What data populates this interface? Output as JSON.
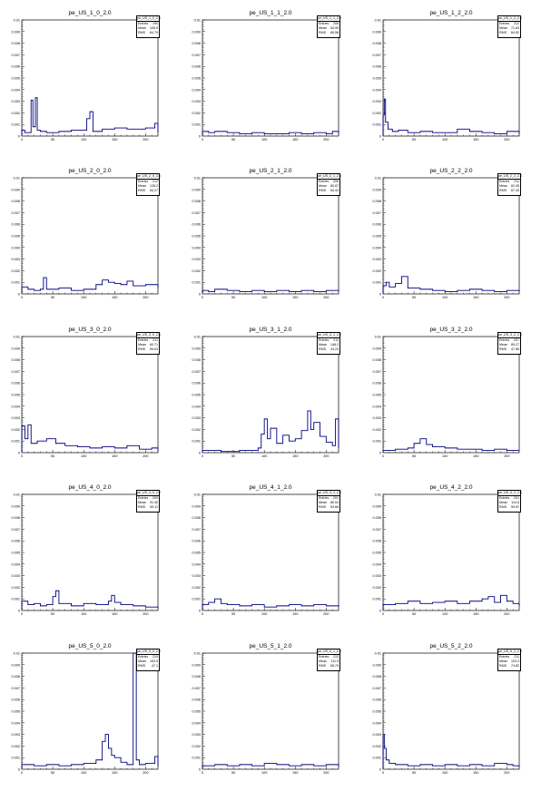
{
  "stat_labels": {
    "entries": "Entries",
    "mean": "Mean",
    "rms": "RMS"
  },
  "colors": {
    "line": "#000080",
    "axis": "#000000",
    "background": "#ffffff"
  },
  "chart_data": [
    {
      "type": "line",
      "title": "pe_US_1_0_2.0",
      "stats": {
        "name": "pe_US_1_0_2.0",
        "entries": "190",
        "mean": "108.9",
        "rms": "64.79"
      },
      "xlim": [
        0,
        220
      ],
      "ylim": [
        0,
        0.01
      ],
      "x_ticks": [
        0,
        50,
        100,
        150,
        200
      ],
      "y_ticks": [
        "0.001",
        "0.002",
        "0.003",
        "0.004",
        "0.005",
        "0.006",
        "0.007",
        "0.008",
        "0.009",
        "0.01"
      ],
      "series": [
        {
          "x": [
            0,
            5,
            12,
            15,
            18,
            22,
            25,
            30,
            40,
            60,
            80,
            100,
            105,
            110,
            115,
            130,
            150,
            170,
            200,
            215,
            220
          ],
          "y": [
            0.0005,
            0.0003,
            0.0003,
            0.0031,
            0.0008,
            0.0033,
            0.0005,
            0.0004,
            0.0003,
            0.0004,
            0.0005,
            0.0005,
            0.0015,
            0.0021,
            0.0004,
            0.0006,
            0.0007,
            0.0006,
            0.0007,
            0.0011,
            0.0003
          ]
        }
      ]
    },
    {
      "type": "line",
      "title": "pe_US_1_1_2.0",
      "stats": {
        "name": "pe_US_1_1_2.0",
        "entries": "208",
        "mean": "54.99",
        "rms": "65.58"
      },
      "xlim": [
        0,
        220
      ],
      "ylim": [
        0,
        0.01
      ],
      "x_ticks": [
        0,
        50,
        100,
        150,
        200
      ],
      "y_ticks": [
        "0.001",
        "0.002",
        "0.003",
        "0.004",
        "0.005",
        "0.006",
        "0.007",
        "0.008",
        "0.009",
        "0.01"
      ],
      "series": [
        {
          "x": [
            0,
            10,
            20,
            40,
            60,
            80,
            100,
            120,
            140,
            160,
            180,
            200,
            210,
            220
          ],
          "y": [
            0.0004,
            0.0003,
            0.0004,
            0.0003,
            0.0002,
            0.0003,
            0.0002,
            0.0002,
            0.0003,
            0.0002,
            0.0003,
            0.0002,
            0.0004,
            0.0002
          ]
        }
      ]
    },
    {
      "type": "line",
      "title": "pe_US_1_2_2.0",
      "stats": {
        "name": "pe_US_1_2_2.0",
        "entries": "212",
        "mean": "71.63",
        "rms": "64.52"
      },
      "xlim": [
        0,
        220
      ],
      "ylim": [
        0,
        0.01
      ],
      "x_ticks": [
        0,
        50,
        100,
        150,
        200
      ],
      "y_ticks": [
        "0.001",
        "0.002",
        "0.003",
        "0.004",
        "0.005",
        "0.006",
        "0.007",
        "0.008",
        "0.009",
        "0.01"
      ],
      "series": [
        {
          "x": [
            0,
            2,
            4,
            8,
            15,
            25,
            40,
            60,
            80,
            100,
            120,
            140,
            160,
            180,
            200,
            220
          ],
          "y": [
            0.0018,
            0.0032,
            0.0012,
            0.0006,
            0.0004,
            0.0005,
            0.0003,
            0.0004,
            0.0003,
            0.0003,
            0.0006,
            0.0004,
            0.0003,
            0.0002,
            0.0004,
            0.0002
          ]
        }
      ]
    },
    {
      "type": "line",
      "title": "pe_US_2_0_2.0",
      "stats": {
        "name": "pe_US_2_0_2.0",
        "entries": "212",
        "mean": "128.2",
        "rms": "64.27"
      },
      "xlim": [
        0,
        220
      ],
      "ylim": [
        0,
        0.01
      ],
      "x_ticks": [
        0,
        50,
        100,
        150,
        200
      ],
      "y_ticks": [
        "0.001",
        "0.002",
        "0.003",
        "0.004",
        "0.005",
        "0.006",
        "0.007",
        "0.008",
        "0.009",
        "0.01"
      ],
      "series": [
        {
          "x": [
            0,
            10,
            20,
            30,
            35,
            40,
            60,
            80,
            100,
            120,
            130,
            140,
            150,
            160,
            170,
            180,
            200,
            220
          ],
          "y": [
            0.0006,
            0.0004,
            0.0003,
            0.0004,
            0.0014,
            0.0004,
            0.0005,
            0.0003,
            0.0004,
            0.0008,
            0.0012,
            0.001,
            0.0009,
            0.0008,
            0.0011,
            0.0007,
            0.0008,
            0.0005
          ]
        }
      ]
    },
    {
      "type": "line",
      "title": "pe_US_2_1_2.0",
      "stats": {
        "name": "pe_US_2_1_2.0",
        "entries": "206",
        "mean": "80.67",
        "rms": "64.43"
      },
      "xlim": [
        0,
        220
      ],
      "ylim": [
        0,
        0.01
      ],
      "x_ticks": [
        0,
        50,
        100,
        150,
        200
      ],
      "y_ticks": [
        "0.001",
        "0.002",
        "0.003",
        "0.004",
        "0.005",
        "0.006",
        "0.007",
        "0.008",
        "0.009",
        "0.01"
      ],
      "series": [
        {
          "x": [
            0,
            10,
            20,
            40,
            60,
            80,
            100,
            120,
            140,
            160,
            180,
            200,
            220
          ],
          "y": [
            0.0003,
            0.0002,
            0.0004,
            0.0003,
            0.0002,
            0.0003,
            0.0002,
            0.0003,
            0.0002,
            0.0003,
            0.0002,
            0.0003,
            0.0002
          ]
        }
      ]
    },
    {
      "type": "line",
      "title": "pe_US_2_2_2.0",
      "stats": {
        "name": "pe_US_2_2_2.0",
        "entries": "211",
        "mean": "62.45",
        "rms": "67.26"
      },
      "xlim": [
        0,
        220
      ],
      "ylim": [
        0,
        0.01
      ],
      "x_ticks": [
        0,
        50,
        100,
        150,
        200
      ],
      "y_ticks": [
        "0.001",
        "0.002",
        "0.003",
        "0.004",
        "0.005",
        "0.006",
        "0.007",
        "0.008",
        "0.009",
        "0.01"
      ],
      "series": [
        {
          "x": [
            0,
            5,
            10,
            20,
            30,
            40,
            60,
            80,
            100,
            120,
            140,
            160,
            180,
            200,
            220
          ],
          "y": [
            0.0007,
            0.001,
            0.0006,
            0.0009,
            0.0015,
            0.0005,
            0.0004,
            0.0003,
            0.0002,
            0.0003,
            0.0004,
            0.0003,
            0.0002,
            0.0003,
            0.0002
          ]
        }
      ]
    },
    {
      "type": "line",
      "title": "pe_US_3_0_2.0",
      "stats": {
        "name": "pe_US_3_0_2.0",
        "entries": "211",
        "mean": "60.71",
        "rms": "59.63"
      },
      "xlim": [
        0,
        220
      ],
      "ylim": [
        0,
        0.01
      ],
      "x_ticks": [
        0,
        50,
        100,
        150,
        200
      ],
      "y_ticks": [
        "0.001",
        "0.002",
        "0.003",
        "0.004",
        "0.005",
        "0.006",
        "0.007",
        "0.008",
        "0.009",
        "0.01"
      ],
      "series": [
        {
          "x": [
            0,
            5,
            10,
            15,
            25,
            40,
            55,
            70,
            90,
            110,
            130,
            150,
            170,
            190,
            210,
            220
          ],
          "y": [
            0.0023,
            0.0012,
            0.0024,
            0.0008,
            0.001,
            0.0012,
            0.0008,
            0.0006,
            0.0005,
            0.0004,
            0.0005,
            0.0004,
            0.0006,
            0.0003,
            0.0004,
            0.0002
          ]
        }
      ]
    },
    {
      "type": "line",
      "title": "pe_US_3_1_2.0",
      "stats": {
        "name": "pe_US_3_1_2.0",
        "entries": "211",
        "mean": "148.2",
        "rms": "43.23"
      },
      "xlim": [
        0,
        220
      ],
      "ylim": [
        0,
        0.01
      ],
      "x_ticks": [
        0,
        50,
        100,
        150,
        200
      ],
      "y_ticks": [
        "0.001",
        "0.002",
        "0.003",
        "0.004",
        "0.005",
        "0.006",
        "0.007",
        "0.008",
        "0.009",
        "0.01"
      ],
      "series": [
        {
          "x": [
            0,
            30,
            60,
            90,
            95,
            100,
            105,
            110,
            120,
            130,
            140,
            150,
            160,
            170,
            175,
            180,
            190,
            200,
            210,
            215,
            220
          ],
          "y": [
            0.0002,
            0.0001,
            0.0002,
            0.0004,
            0.0016,
            0.0029,
            0.0012,
            0.0021,
            0.0008,
            0.0015,
            0.001,
            0.0012,
            0.0019,
            0.0036,
            0.002,
            0.0026,
            0.0014,
            0.0009,
            0.0006,
            0.0029,
            0.0004
          ]
        }
      ]
    },
    {
      "type": "line",
      "title": "pe_US_3_2_2.0",
      "stats": {
        "name": "pe_US_3_2_2.0",
        "entries": "207",
        "mean": "89.27",
        "rms": "47.58"
      },
      "xlim": [
        0,
        220
      ],
      "ylim": [
        0,
        0.01
      ],
      "x_ticks": [
        0,
        50,
        100,
        150,
        200
      ],
      "y_ticks": [
        "0.001",
        "0.002",
        "0.003",
        "0.004",
        "0.005",
        "0.006",
        "0.007",
        "0.008",
        "0.009",
        "0.01"
      ],
      "series": [
        {
          "x": [
            0,
            20,
            40,
            50,
            60,
            70,
            80,
            100,
            120,
            140,
            160,
            180,
            200,
            220
          ],
          "y": [
            0.0002,
            0.0003,
            0.0004,
            0.0008,
            0.0012,
            0.0007,
            0.0005,
            0.0004,
            0.0003,
            0.0003,
            0.0002,
            0.0003,
            0.0002,
            0.0002
          ]
        }
      ]
    },
    {
      "type": "line",
      "title": "pe_US_4_0_2.0",
      "stats": {
        "name": "pe_US_4_0_2.0",
        "entries": "209",
        "mean": "91.40",
        "rms": "59.11"
      },
      "xlim": [
        0,
        220
      ],
      "ylim": [
        0,
        0.01
      ],
      "x_ticks": [
        0,
        50,
        100,
        150,
        200
      ],
      "y_ticks": [
        "0.001",
        "0.002",
        "0.003",
        "0.004",
        "0.005",
        "0.006",
        "0.007",
        "0.008",
        "0.009",
        "0.01"
      ],
      "series": [
        {
          "x": [
            0,
            10,
            20,
            30,
            40,
            50,
            55,
            60,
            80,
            100,
            120,
            140,
            145,
            150,
            160,
            180,
            200,
            220
          ],
          "y": [
            0.0008,
            0.0005,
            0.0006,
            0.0004,
            0.0005,
            0.0012,
            0.0017,
            0.0006,
            0.0004,
            0.0006,
            0.0005,
            0.0008,
            0.0013,
            0.0007,
            0.0005,
            0.0004,
            0.0003,
            0.0002
          ]
        }
      ]
    },
    {
      "type": "line",
      "title": "pe_US_4_1_2.0",
      "stats": {
        "name": "pe_US_4_1_2.0",
        "entries": "201",
        "mean": "80.04",
        "rms": "63.66"
      },
      "xlim": [
        0,
        220
      ],
      "ylim": [
        0,
        0.01
      ],
      "x_ticks": [
        0,
        50,
        100,
        150,
        200
      ],
      "y_ticks": [
        "0.001",
        "0.002",
        "0.003",
        "0.004",
        "0.005",
        "0.006",
        "0.007",
        "0.008",
        "0.009",
        "0.01"
      ],
      "series": [
        {
          "x": [
            0,
            10,
            20,
            30,
            40,
            60,
            80,
            100,
            120,
            140,
            160,
            180,
            200,
            220
          ],
          "y": [
            0.0005,
            0.0007,
            0.001,
            0.0006,
            0.0005,
            0.0004,
            0.0005,
            0.0003,
            0.0004,
            0.0005,
            0.0004,
            0.0005,
            0.0004,
            0.0003
          ]
        }
      ]
    },
    {
      "type": "line",
      "title": "pe_US_4_2_2.0",
      "stats": {
        "name": "pe_US_4_2_2.0",
        "entries": "201",
        "mean": "114.5",
        "rms": "59.57"
      },
      "xlim": [
        0,
        220
      ],
      "ylim": [
        0,
        0.01
      ],
      "x_ticks": [
        0,
        50,
        100,
        150,
        200
      ],
      "y_ticks": [
        "0.001",
        "0.002",
        "0.003",
        "0.004",
        "0.005",
        "0.006",
        "0.007",
        "0.008",
        "0.009",
        "0.01"
      ],
      "series": [
        {
          "x": [
            0,
            20,
            40,
            60,
            80,
            100,
            120,
            140,
            160,
            170,
            180,
            190,
            200,
            210,
            220
          ],
          "y": [
            0.0005,
            0.0006,
            0.0008,
            0.0006,
            0.0007,
            0.0008,
            0.0006,
            0.0008,
            0.001,
            0.0012,
            0.0007,
            0.0013,
            0.0008,
            0.0006,
            0.0004
          ]
        }
      ]
    },
    {
      "type": "line",
      "title": "pe_US_5_0_2.0",
      "stats": {
        "name": "pe_US_5_0_2.0",
        "entries": "210",
        "mean": "153.5",
        "rms": "47.1"
      },
      "xlim": [
        0,
        220
      ],
      "ylim": [
        0,
        0.01
      ],
      "x_ticks": [
        0,
        50,
        100,
        150,
        200
      ],
      "y_ticks": [
        "0.001",
        "0.002",
        "0.003",
        "0.004",
        "0.005",
        "0.006",
        "0.007",
        "0.008",
        "0.009",
        "0.01"
      ],
      "series": [
        {
          "x": [
            0,
            20,
            40,
            60,
            80,
            100,
            120,
            130,
            135,
            140,
            145,
            150,
            160,
            170,
            180,
            185,
            190,
            200,
            215,
            220
          ],
          "y": [
            0.0004,
            0.0003,
            0.0004,
            0.0003,
            0.0004,
            0.0005,
            0.0008,
            0.0024,
            0.003,
            0.0018,
            0.0012,
            0.001,
            0.0006,
            0.0004,
            0.0105,
            0.0008,
            0.0004,
            0.0005,
            0.0011,
            0.0003
          ]
        }
      ]
    },
    {
      "type": "line",
      "title": "pe_US_5_1_2.0",
      "stats": {
        "name": "pe_US_5_1_2.0",
        "entries": "213",
        "mean": "111.9",
        "rms": "65.79"
      },
      "xlim": [
        0,
        220
      ],
      "ylim": [
        0,
        0.01
      ],
      "x_ticks": [
        0,
        50,
        100,
        150,
        200
      ],
      "y_ticks": [
        "0.001",
        "0.002",
        "0.003",
        "0.004",
        "0.005",
        "0.006",
        "0.007",
        "0.008",
        "0.009",
        "0.01"
      ],
      "series": [
        {
          "x": [
            0,
            20,
            40,
            60,
            80,
            100,
            120,
            140,
            160,
            180,
            200,
            220
          ],
          "y": [
            0.0003,
            0.0004,
            0.0003,
            0.0004,
            0.0003,
            0.0005,
            0.0004,
            0.0003,
            0.0004,
            0.0003,
            0.0004,
            0.0002
          ]
        }
      ]
    },
    {
      "type": "line",
      "title": "pe_US_5_2_2.0",
      "stats": {
        "name": "pe_US_5_2_2.0",
        "entries": "211",
        "mean": "103.3",
        "rms": "74.82"
      },
      "xlim": [
        0,
        220
      ],
      "ylim": [
        0,
        0.01
      ],
      "x_ticks": [
        0,
        50,
        100,
        150,
        200
      ],
      "y_ticks": [
        "0.001",
        "0.002",
        "0.003",
        "0.004",
        "0.005",
        "0.006",
        "0.007",
        "0.008",
        "0.009",
        "0.01"
      ],
      "series": [
        {
          "x": [
            0,
            2,
            5,
            10,
            20,
            40,
            60,
            80,
            100,
            120,
            140,
            160,
            180,
            200,
            210,
            220
          ],
          "y": [
            0.003,
            0.0018,
            0.0008,
            0.0005,
            0.0004,
            0.0003,
            0.0004,
            0.0003,
            0.0004,
            0.0003,
            0.0004,
            0.0003,
            0.0005,
            0.0004,
            0.0003,
            0.0002
          ]
        }
      ]
    }
  ]
}
